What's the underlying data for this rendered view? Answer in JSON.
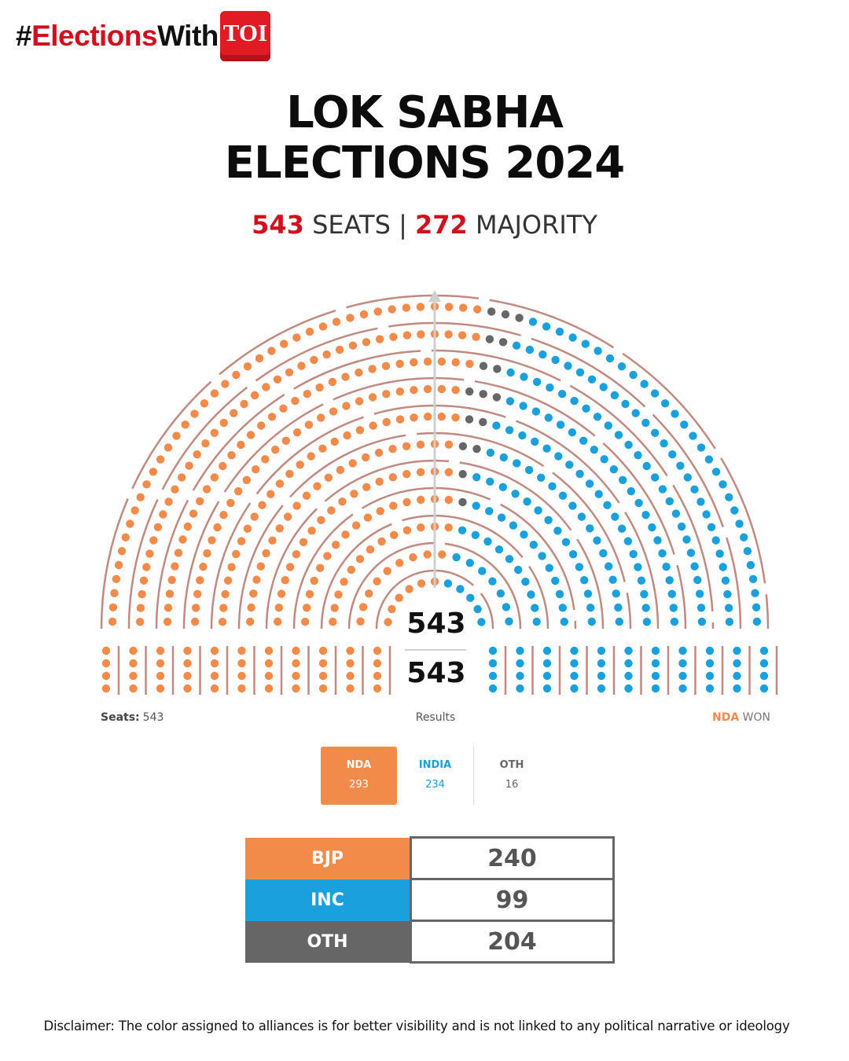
{
  "brand": {
    "hash": "#",
    "elections": "Elections",
    "with": "With",
    "logo": "TOI"
  },
  "title": {
    "line1": "LOK SABHA",
    "line2": "ELECTIONS 2024"
  },
  "subtitle": {
    "seats_value": "543",
    "seats_label": " SEATS | ",
    "majority_value": "272",
    "majority_label": " MAJORITY"
  },
  "chart_data": {
    "type": "parliament",
    "title": "LOK SABHA ELECTIONS 2024",
    "total_seats": 543,
    "majority": 272,
    "center_top": "543",
    "center_bottom": "543",
    "seats_label": "Seats:",
    "seats_value": "543",
    "results_label": "Results",
    "winner": "NDA",
    "winner_suffix": " WON",
    "series": [
      {
        "name": "NDA",
        "value": 293,
        "color": "#f28a4a"
      },
      {
        "name": "OTH",
        "value": 16,
        "color": "#666666"
      },
      {
        "name": "INDIA",
        "value": 234,
        "color": "#1aa0dc"
      }
    ]
  },
  "legend": [
    {
      "name": "NDA",
      "value": "293"
    },
    {
      "name": "INDIA",
      "value": "234"
    },
    {
      "name": "OTH",
      "value": "16"
    }
  ],
  "parties": [
    {
      "name": "BJP",
      "seats": "240",
      "color": "#f28a4a"
    },
    {
      "name": "INC",
      "seats": "99",
      "color": "#1aa0dc"
    },
    {
      "name": "OTH",
      "seats": "204",
      "color": "#666666"
    }
  ],
  "disclaimer": "Disclaimer: The color assigned to alliances is for better visibility and is not linked to any political narrative or ideology"
}
